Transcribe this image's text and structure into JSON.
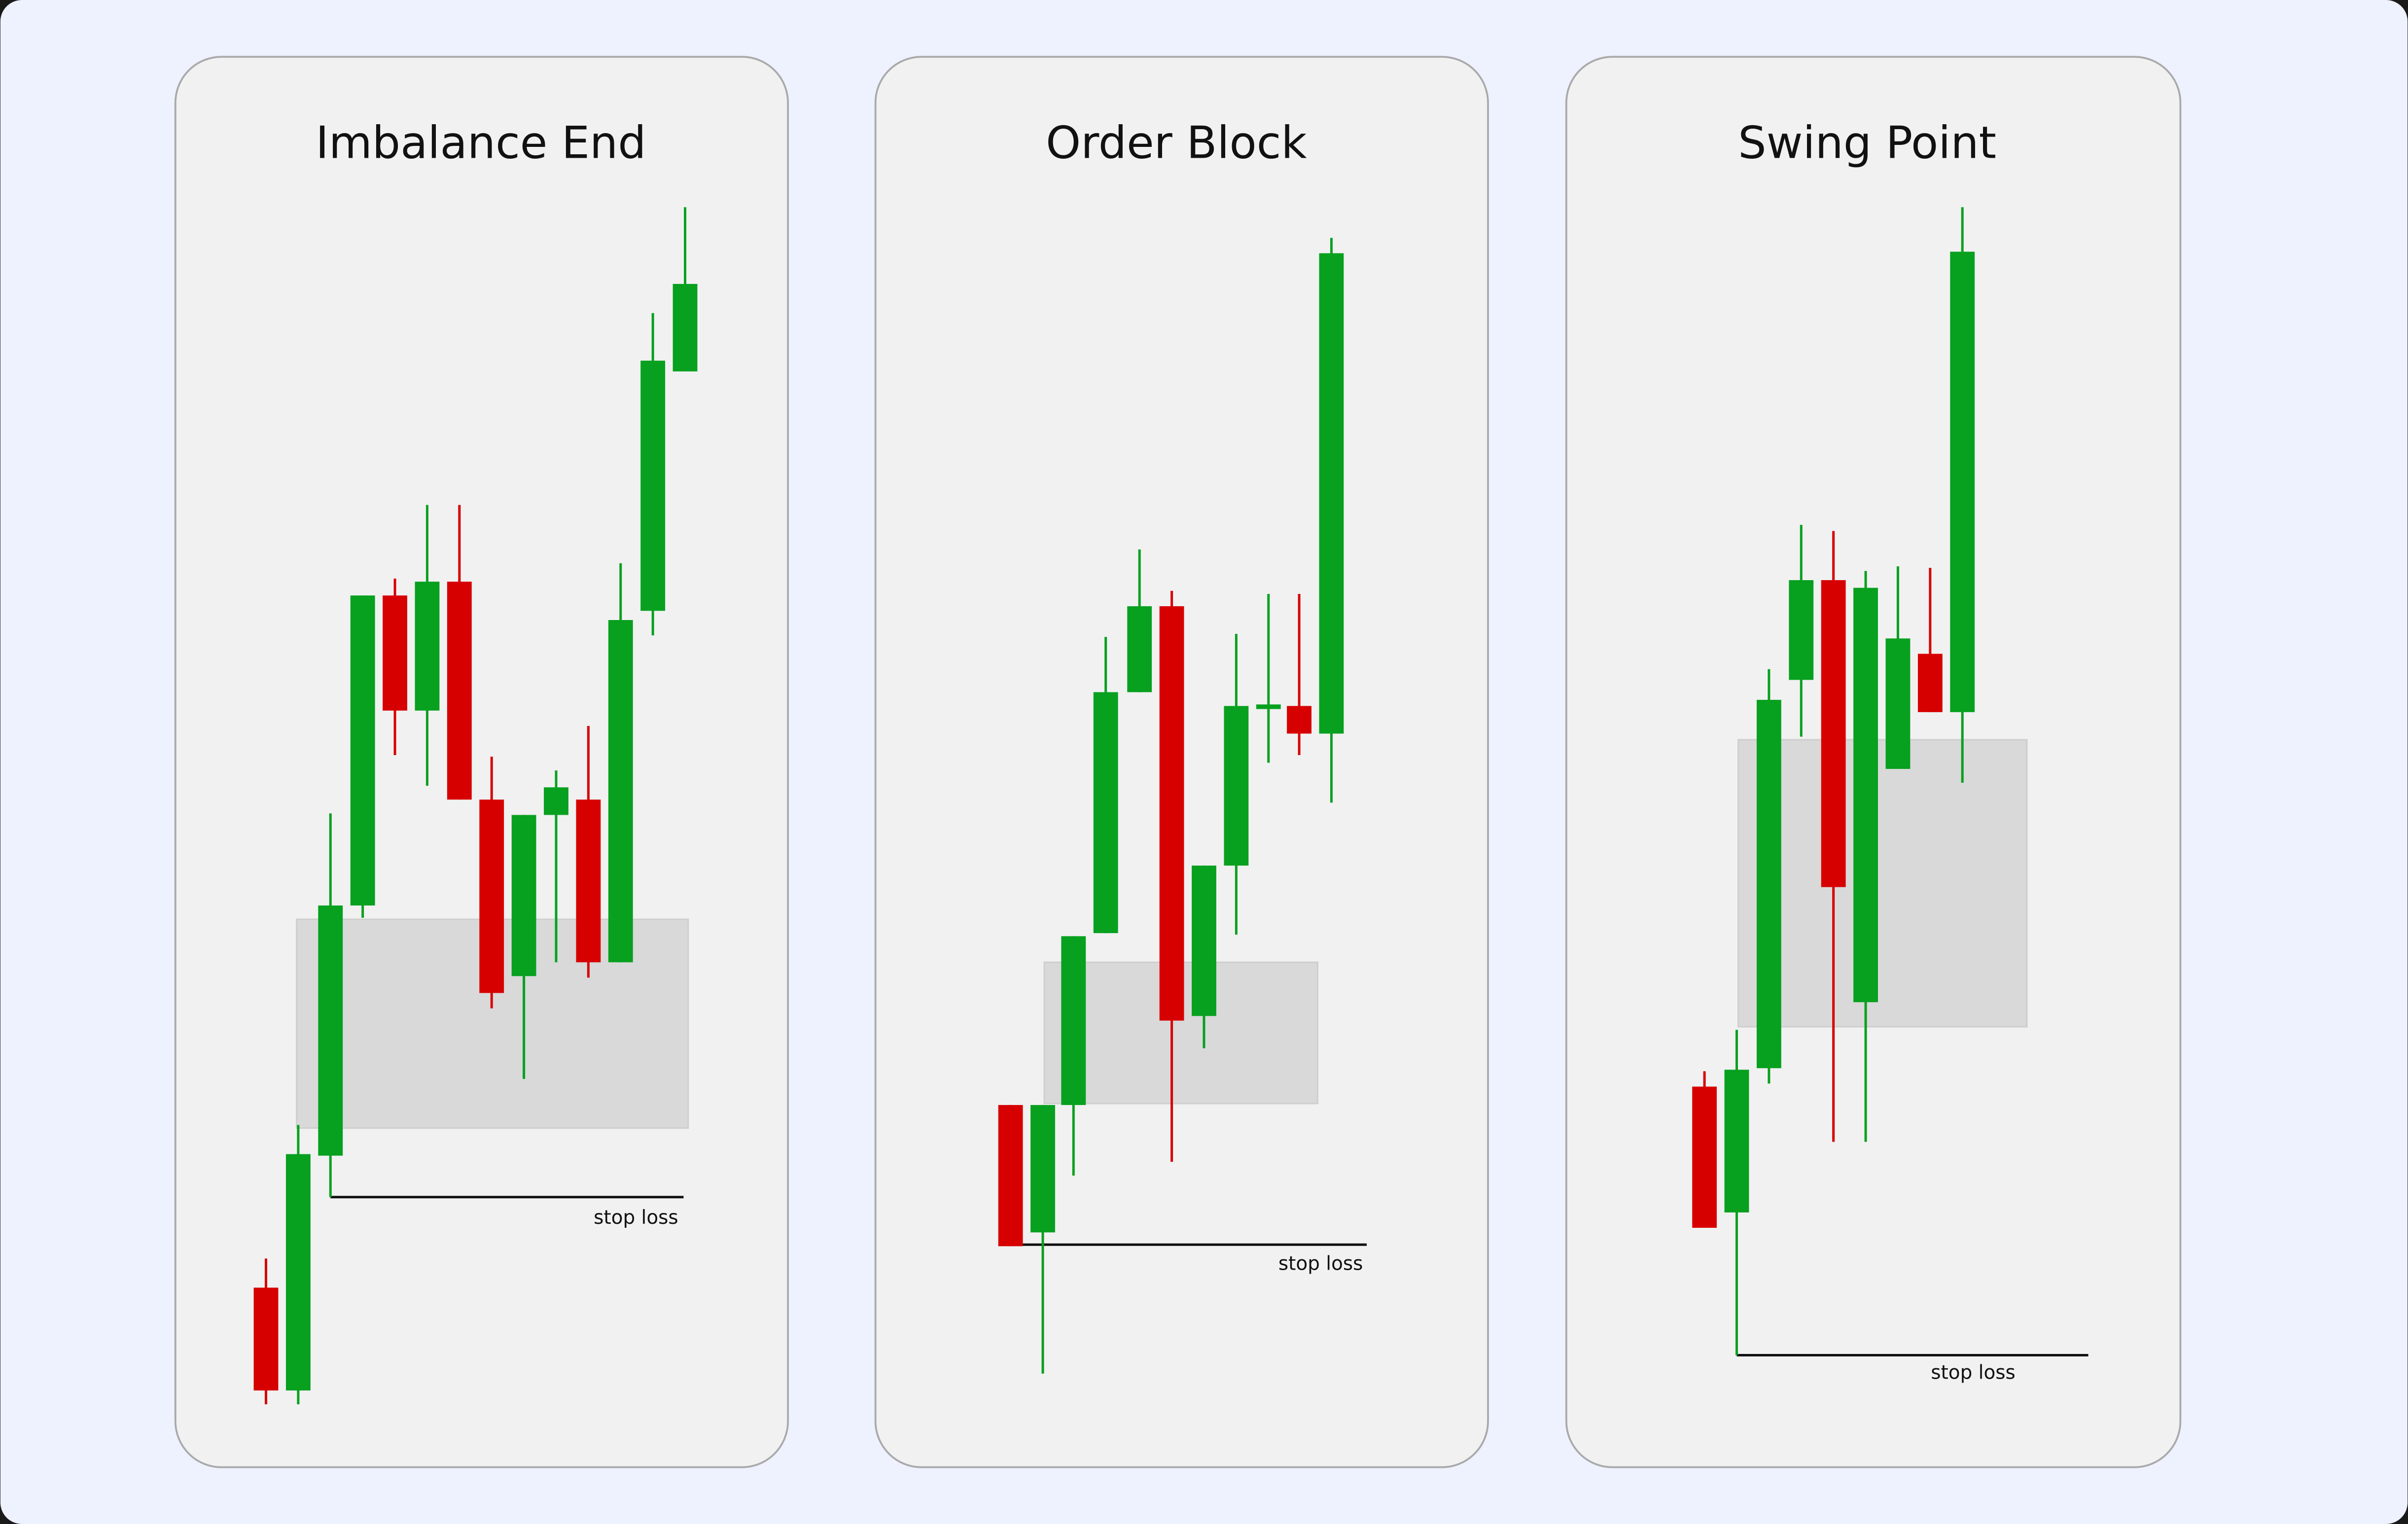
{
  "panels": [
    {
      "title": "Imbalance End",
      "stop_label": "stop loss"
    },
    {
      "title": "Order Block",
      "stop_label": "stop loss"
    },
    {
      "title": "Swing Point",
      "stop_label": "stop loss"
    }
  ]
}
